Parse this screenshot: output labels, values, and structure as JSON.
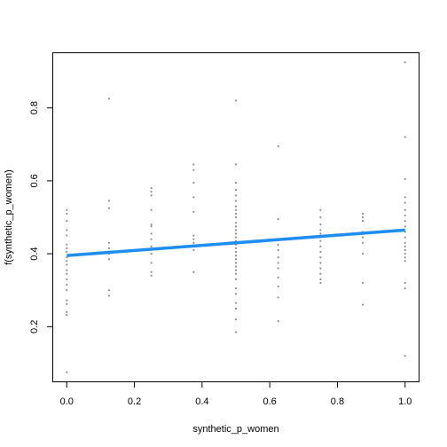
{
  "chart_data": {
    "type": "scatter",
    "xlabel": "synthetic_p_women",
    "ylabel": "f(synthetic_p_women)",
    "xlim": [
      -0.04,
      1.04
    ],
    "ylim": [
      0.05,
      0.95
    ],
    "x_ticks": [
      0.0,
      0.2,
      0.4,
      0.6,
      0.8,
      1.0
    ],
    "x_tick_labels": [
      "0.0",
      "0.2",
      "0.4",
      "0.6",
      "0.8",
      "1.0"
    ],
    "y_ticks": [
      0.2,
      0.4,
      0.6,
      0.8
    ],
    "y_tick_labels": [
      "0.2",
      "0.4",
      "0.6",
      "0.8"
    ],
    "grid": false,
    "legend": "none",
    "colors": {
      "points": "#808080",
      "fit_line": "#1f8ef1",
      "axes": "#000000"
    },
    "points": [
      {
        "x": 0.0,
        "y": 0.075
      },
      {
        "x": 0.0,
        "y": 0.232
      },
      {
        "x": 0.0,
        "y": 0.24
      },
      {
        "x": 0.0,
        "y": 0.262
      },
      {
        "x": 0.0,
        "y": 0.272
      },
      {
        "x": 0.0,
        "y": 0.3
      },
      {
        "x": 0.0,
        "y": 0.315
      },
      {
        "x": 0.0,
        "y": 0.33
      },
      {
        "x": 0.0,
        "y": 0.345
      },
      {
        "x": 0.0,
        "y": 0.355
      },
      {
        "x": 0.0,
        "y": 0.37
      },
      {
        "x": 0.0,
        "y": 0.38
      },
      {
        "x": 0.0,
        "y": 0.39
      },
      {
        "x": 0.0,
        "y": 0.405
      },
      {
        "x": 0.0,
        "y": 0.415
      },
      {
        "x": 0.0,
        "y": 0.425
      },
      {
        "x": 0.0,
        "y": 0.45
      },
      {
        "x": 0.0,
        "y": 0.465
      },
      {
        "x": 0.0,
        "y": 0.49
      },
      {
        "x": 0.0,
        "y": 0.51
      },
      {
        "x": 0.0,
        "y": 0.52
      },
      {
        "x": 0.125,
        "y": 0.285
      },
      {
        "x": 0.125,
        "y": 0.3
      },
      {
        "x": 0.125,
        "y": 0.385
      },
      {
        "x": 0.125,
        "y": 0.4
      },
      {
        "x": 0.125,
        "y": 0.415
      },
      {
        "x": 0.125,
        "y": 0.43
      },
      {
        "x": 0.125,
        "y": 0.525
      },
      {
        "x": 0.125,
        "y": 0.545
      },
      {
        "x": 0.125,
        "y": 0.825
      },
      {
        "x": 0.25,
        "y": 0.34
      },
      {
        "x": 0.25,
        "y": 0.35
      },
      {
        "x": 0.25,
        "y": 0.375
      },
      {
        "x": 0.25,
        "y": 0.4
      },
      {
        "x": 0.25,
        "y": 0.42
      },
      {
        "x": 0.25,
        "y": 0.44
      },
      {
        "x": 0.25,
        "y": 0.455
      },
      {
        "x": 0.25,
        "y": 0.475
      },
      {
        "x": 0.25,
        "y": 0.48
      },
      {
        "x": 0.25,
        "y": 0.52
      },
      {
        "x": 0.25,
        "y": 0.56
      },
      {
        "x": 0.25,
        "y": 0.57
      },
      {
        "x": 0.25,
        "y": 0.58
      },
      {
        "x": 0.375,
        "y": 0.35
      },
      {
        "x": 0.375,
        "y": 0.41
      },
      {
        "x": 0.375,
        "y": 0.42
      },
      {
        "x": 0.375,
        "y": 0.43
      },
      {
        "x": 0.375,
        "y": 0.44
      },
      {
        "x": 0.375,
        "y": 0.45
      },
      {
        "x": 0.375,
        "y": 0.515
      },
      {
        "x": 0.375,
        "y": 0.555
      },
      {
        "x": 0.375,
        "y": 0.595
      },
      {
        "x": 0.375,
        "y": 0.63
      },
      {
        "x": 0.375,
        "y": 0.645
      },
      {
        "x": 0.5,
        "y": 0.185
      },
      {
        "x": 0.5,
        "y": 0.22
      },
      {
        "x": 0.5,
        "y": 0.25
      },
      {
        "x": 0.5,
        "y": 0.265
      },
      {
        "x": 0.5,
        "y": 0.29
      },
      {
        "x": 0.5,
        "y": 0.305
      },
      {
        "x": 0.5,
        "y": 0.33
      },
      {
        "x": 0.5,
        "y": 0.345
      },
      {
        "x": 0.5,
        "y": 0.355
      },
      {
        "x": 0.5,
        "y": 0.365
      },
      {
        "x": 0.5,
        "y": 0.375
      },
      {
        "x": 0.5,
        "y": 0.385
      },
      {
        "x": 0.5,
        "y": 0.395
      },
      {
        "x": 0.5,
        "y": 0.405
      },
      {
        "x": 0.5,
        "y": 0.415
      },
      {
        "x": 0.5,
        "y": 0.425
      },
      {
        "x": 0.5,
        "y": 0.435
      },
      {
        "x": 0.5,
        "y": 0.445
      },
      {
        "x": 0.5,
        "y": 0.455
      },
      {
        "x": 0.5,
        "y": 0.465
      },
      {
        "x": 0.5,
        "y": 0.475
      },
      {
        "x": 0.5,
        "y": 0.485
      },
      {
        "x": 0.5,
        "y": 0.5
      },
      {
        "x": 0.5,
        "y": 0.51
      },
      {
        "x": 0.5,
        "y": 0.52
      },
      {
        "x": 0.5,
        "y": 0.53
      },
      {
        "x": 0.5,
        "y": 0.545
      },
      {
        "x": 0.5,
        "y": 0.56
      },
      {
        "x": 0.5,
        "y": 0.575
      },
      {
        "x": 0.5,
        "y": 0.595
      },
      {
        "x": 0.5,
        "y": 0.645
      },
      {
        "x": 0.5,
        "y": 0.82
      },
      {
        "x": 0.625,
        "y": 0.215
      },
      {
        "x": 0.625,
        "y": 0.28
      },
      {
        "x": 0.625,
        "y": 0.31
      },
      {
        "x": 0.625,
        "y": 0.335
      },
      {
        "x": 0.625,
        "y": 0.36
      },
      {
        "x": 0.625,
        "y": 0.375
      },
      {
        "x": 0.625,
        "y": 0.39
      },
      {
        "x": 0.625,
        "y": 0.41
      },
      {
        "x": 0.625,
        "y": 0.425
      },
      {
        "x": 0.625,
        "y": 0.44
      },
      {
        "x": 0.625,
        "y": 0.495
      },
      {
        "x": 0.625,
        "y": 0.695
      },
      {
        "x": 0.75,
        "y": 0.32
      },
      {
        "x": 0.75,
        "y": 0.33
      },
      {
        "x": 0.75,
        "y": 0.345
      },
      {
        "x": 0.75,
        "y": 0.36
      },
      {
        "x": 0.75,
        "y": 0.375
      },
      {
        "x": 0.75,
        "y": 0.39
      },
      {
        "x": 0.75,
        "y": 0.405
      },
      {
        "x": 0.75,
        "y": 0.42
      },
      {
        "x": 0.75,
        "y": 0.435
      },
      {
        "x": 0.75,
        "y": 0.445
      },
      {
        "x": 0.75,
        "y": 0.455
      },
      {
        "x": 0.75,
        "y": 0.465
      },
      {
        "x": 0.75,
        "y": 0.48
      },
      {
        "x": 0.75,
        "y": 0.5
      },
      {
        "x": 0.75,
        "y": 0.52
      },
      {
        "x": 0.875,
        "y": 0.26
      },
      {
        "x": 0.875,
        "y": 0.32
      },
      {
        "x": 0.875,
        "y": 0.4
      },
      {
        "x": 0.875,
        "y": 0.43
      },
      {
        "x": 0.875,
        "y": 0.445
      },
      {
        "x": 0.875,
        "y": 0.46
      },
      {
        "x": 0.875,
        "y": 0.49
      },
      {
        "x": 0.875,
        "y": 0.5
      },
      {
        "x": 0.875,
        "y": 0.51
      },
      {
        "x": 1.0,
        "y": 0.12
      },
      {
        "x": 1.0,
        "y": 0.305
      },
      {
        "x": 1.0,
        "y": 0.32
      },
      {
        "x": 1.0,
        "y": 0.38
      },
      {
        "x": 1.0,
        "y": 0.39
      },
      {
        "x": 1.0,
        "y": 0.4
      },
      {
        "x": 1.0,
        "y": 0.41
      },
      {
        "x": 1.0,
        "y": 0.42
      },
      {
        "x": 1.0,
        "y": 0.43
      },
      {
        "x": 1.0,
        "y": 0.445
      },
      {
        "x": 1.0,
        "y": 0.46
      },
      {
        "x": 1.0,
        "y": 0.475
      },
      {
        "x": 1.0,
        "y": 0.49
      },
      {
        "x": 1.0,
        "y": 0.505
      },
      {
        "x": 1.0,
        "y": 0.52
      },
      {
        "x": 1.0,
        "y": 0.54
      },
      {
        "x": 1.0,
        "y": 0.555
      },
      {
        "x": 1.0,
        "y": 0.605
      },
      {
        "x": 1.0,
        "y": 0.72
      },
      {
        "x": 1.0,
        "y": 0.925
      }
    ],
    "fit_line": [
      {
        "x": 0.0,
        "y": 0.395
      },
      {
        "x": 1.0,
        "y": 0.465
      }
    ]
  }
}
